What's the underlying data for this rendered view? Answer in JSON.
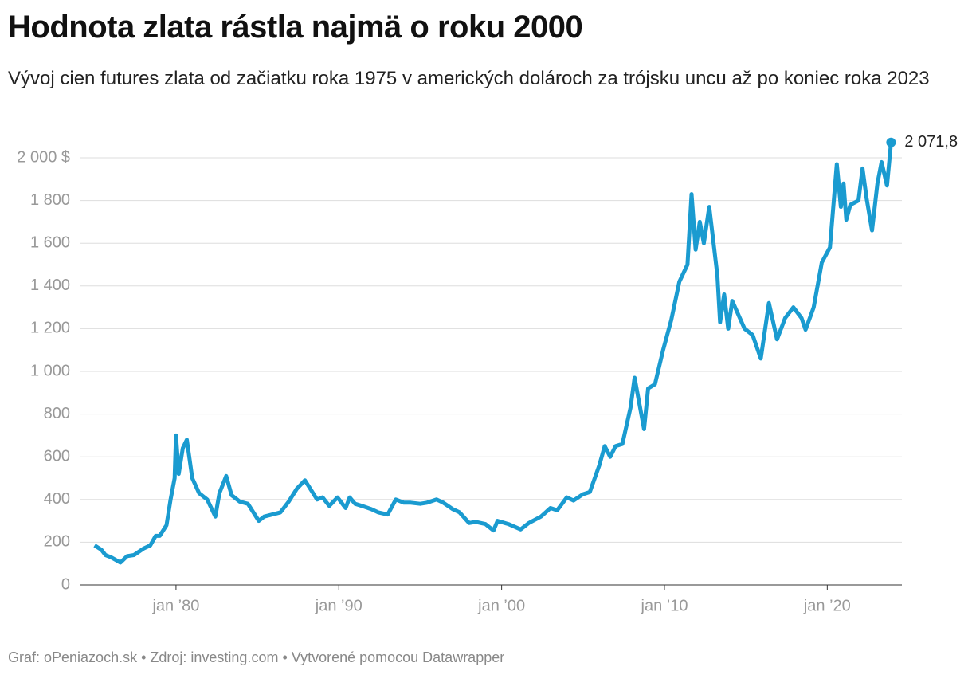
{
  "chart_data": {
    "type": "line",
    "title": "Hodnota zlata rástla najmä o roku 2000",
    "subtitle": "Vývoj cien futures zlata od začiatku roka 1975 v amerických dolároch za trójsku uncu až po koniec roka 2023",
    "source": "Graf: oPeniazoch.sk • Zdroj: investing.com • Vytvorené pomocou Datawrapper",
    "x": [
      "1975-01",
      "1975-06",
      "1975-09",
      "1976-01",
      "1976-08",
      "1977-01",
      "1977-06",
      "1978-01",
      "1978-06",
      "1978-10",
      "1979-01",
      "1979-06",
      "1979-09",
      "1979-12",
      "1980-01",
      "1980-03",
      "1980-06",
      "1980-09",
      "1981-01",
      "1981-06",
      "1981-12",
      "1982-06",
      "1982-09",
      "1983-02",
      "1983-06",
      "1983-12",
      "1984-06",
      "1985-02",
      "1985-06",
      "1985-12",
      "1986-06",
      "1986-12",
      "1987-06",
      "1987-12",
      "1988-03",
      "1988-09",
      "1989-01",
      "1989-06",
      "1989-12",
      "1990-06",
      "1990-09",
      "1991-01",
      "1991-06",
      "1992-01",
      "1992-06",
      "1993-01",
      "1993-07",
      "1994-01",
      "1994-06",
      "1995-01",
      "1995-06",
      "1996-01",
      "1996-06",
      "1997-01",
      "1997-06",
      "1998-01",
      "1998-06",
      "1999-01",
      "1999-07",
      "1999-10",
      "2000-06",
      "2001-03",
      "2001-09",
      "2002-06",
      "2003-01",
      "2003-06",
      "2004-01",
      "2004-06",
      "2005-01",
      "2005-06",
      "2006-01",
      "2006-05",
      "2006-09",
      "2007-01",
      "2007-06",
      "2007-12",
      "2008-03",
      "2008-10",
      "2009-01",
      "2009-06",
      "2009-12",
      "2010-06",
      "2010-12",
      "2011-06",
      "2011-09",
      "2011-12",
      "2012-03",
      "2012-06",
      "2012-10",
      "2013-04",
      "2013-06",
      "2013-09",
      "2013-12",
      "2014-03",
      "2014-12",
      "2015-06",
      "2015-12",
      "2016-06",
      "2016-12",
      "2017-06",
      "2017-12",
      "2018-06",
      "2018-09",
      "2019-03",
      "2019-09",
      "2020-03",
      "2020-08",
      "2020-11",
      "2021-01",
      "2021-03",
      "2021-06",
      "2021-12",
      "2022-03",
      "2022-06",
      "2022-10",
      "2023-02",
      "2023-05",
      "2023-09",
      "2023-12"
    ],
    "series": [
      {
        "color": "#1a9bd0",
        "values": [
          185,
          165,
          140,
          130,
          105,
          135,
          140,
          170,
          185,
          230,
          230,
          280,
          400,
          500,
          700,
          520,
          640,
          680,
          500,
          430,
          400,
          320,
          430,
          510,
          420,
          390,
          380,
          300,
          320,
          330,
          340,
          390,
          450,
          490,
          460,
          400,
          410,
          370,
          410,
          360,
          410,
          380,
          370,
          355,
          340,
          330,
          400,
          385,
          385,
          380,
          385,
          400,
          385,
          355,
          340,
          290,
          295,
          285,
          255,
          300,
          285,
          260,
          290,
          320,
          360,
          350,
          410,
          395,
          425,
          435,
          560,
          650,
          600,
          650,
          660,
          830,
          970,
          730,
          920,
          940,
          1100,
          1240,
          1420,
          1500,
          1830,
          1570,
          1700,
          1600,
          1770,
          1450,
          1230,
          1360,
          1200,
          1330,
          1200,
          1170,
          1060,
          1320,
          1150,
          1250,
          1300,
          1250,
          1195,
          1300,
          1510,
          1580,
          1970,
          1770,
          1880,
          1710,
          1780,
          1800,
          1950,
          1810,
          1660,
          1880,
          1980,
          1870,
          2071.8
        ],
        "value_labels": [
          null,
          null,
          null,
          null,
          null,
          null,
          null,
          null,
          null,
          null,
          null,
          null,
          null,
          null,
          null,
          null,
          null,
          null,
          null,
          null,
          null,
          null,
          null,
          null,
          null,
          null,
          null,
          null,
          null,
          null,
          null,
          null,
          null,
          null,
          null,
          null,
          null,
          null,
          null,
          null,
          null,
          null,
          null,
          null,
          null,
          null,
          null,
          null,
          null,
          null,
          null,
          null,
          null,
          null,
          null,
          null,
          null,
          null,
          null,
          null,
          null,
          null,
          null,
          null,
          null,
          null,
          null,
          null,
          null,
          null,
          null,
          null,
          null,
          null,
          null,
          null,
          null,
          null,
          null,
          null,
          null,
          null,
          null,
          null,
          null,
          null,
          null,
          null,
          null,
          null,
          null,
          null,
          null,
          null,
          null,
          null,
          null,
          null,
          null,
          null,
          null,
          null,
          null,
          null,
          null,
          null,
          null,
          null,
          null,
          null,
          null,
          null,
          null,
          null,
          null,
          null,
          null,
          null,
          "2 071,8"
        ]
      }
    ],
    "xlim": [
      "1974-02",
      "2024-08"
    ],
    "xticks": [
      {
        "value": "1980-01",
        "label": "jan ’80"
      },
      {
        "value": "1990-01",
        "label": "jan ’90"
      },
      {
        "value": "2000-01",
        "label": "jan ’00"
      },
      {
        "value": "2010-01",
        "label": "jan ’10"
      },
      {
        "value": "2020-01",
        "label": "jan ’20"
      }
    ],
    "ylim": [
      0,
      2000
    ],
    "yticks": [
      0,
      200,
      400,
      600,
      800,
      {
        "value": 1000,
        "label": "1 000"
      },
      {
        "value": 1200,
        "label": "1 200"
      },
      {
        "value": 1400,
        "label": "1 400"
      },
      {
        "value": 1600,
        "label": "1 600"
      },
      {
        "value": 1800,
        "label": "1 800"
      },
      {
        "value": 2000,
        "label": "2 000 $"
      }
    ],
    "grid": true
  }
}
